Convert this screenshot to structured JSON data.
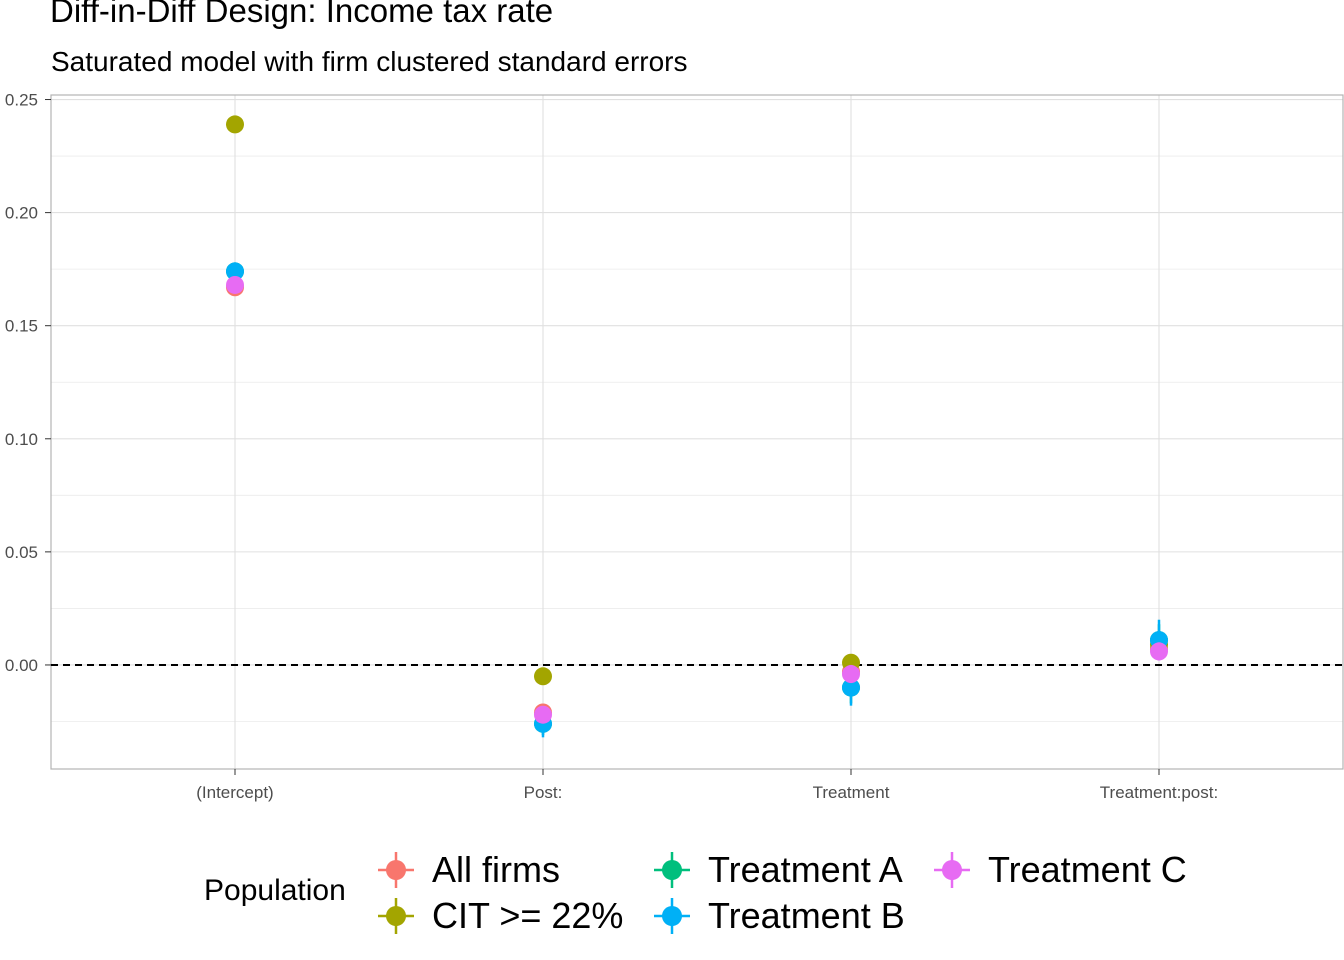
{
  "chart_data": {
    "type": "scatter",
    "title": "Diff-in-Diff Design: Income tax rate",
    "subtitle": "Saturated model with firm clustered standard errors",
    "xlabel": "",
    "ylabel": "",
    "categories": [
      "(Intercept)",
      "Post:",
      "Treatment",
      "Treatment:post:"
    ],
    "ylim": [
      -0.046,
      0.252
    ],
    "yticks": [
      0.0,
      0.05,
      0.1,
      0.15,
      0.2,
      0.25
    ],
    "ytick_labels": [
      "0.00",
      "0.05",
      "0.10",
      "0.15",
      "0.20",
      "0.25"
    ],
    "reference_line": 0,
    "grid": true,
    "legend_title": "Population",
    "legend_position": "bottom",
    "series": [
      {
        "name": "All firms",
        "color": "#F8766D",
        "values": [
          0.167,
          -0.021,
          -0.003,
          0.007
        ],
        "lower": [
          0.165,
          -0.024,
          -0.006,
          0.004
        ],
        "upper": [
          0.169,
          -0.018,
          0.0,
          0.01
        ]
      },
      {
        "name": "CIT >= 22%",
        "color": "#A3A500",
        "values": [
          0.239,
          -0.005,
          0.001,
          0.009
        ],
        "lower": [
          0.236,
          -0.008,
          -0.002,
          0.006
        ],
        "upper": [
          0.242,
          -0.002,
          0.004,
          0.012
        ]
      },
      {
        "name": "Treatment A",
        "color": "#00BF7D",
        "values": [
          0.174,
          -0.026,
          -0.01,
          0.011
        ],
        "lower": [
          0.171,
          -0.031,
          -0.017,
          0.004
        ],
        "upper": [
          0.177,
          -0.021,
          -0.003,
          0.018
        ]
      },
      {
        "name": "Treatment B",
        "color": "#00B0F6",
        "values": [
          0.174,
          -0.026,
          -0.01,
          0.011
        ],
        "lower": [
          0.171,
          -0.032,
          -0.018,
          0.002
        ],
        "upper": [
          0.178,
          -0.02,
          -0.002,
          0.02
        ]
      },
      {
        "name": "Treatment C",
        "color": "#E76BF3",
        "values": [
          0.168,
          -0.022,
          -0.004,
          0.006
        ],
        "lower": [
          0.165,
          -0.025,
          -0.008,
          0.002
        ],
        "upper": [
          0.171,
          -0.019,
          0.0,
          0.01
        ]
      }
    ]
  }
}
